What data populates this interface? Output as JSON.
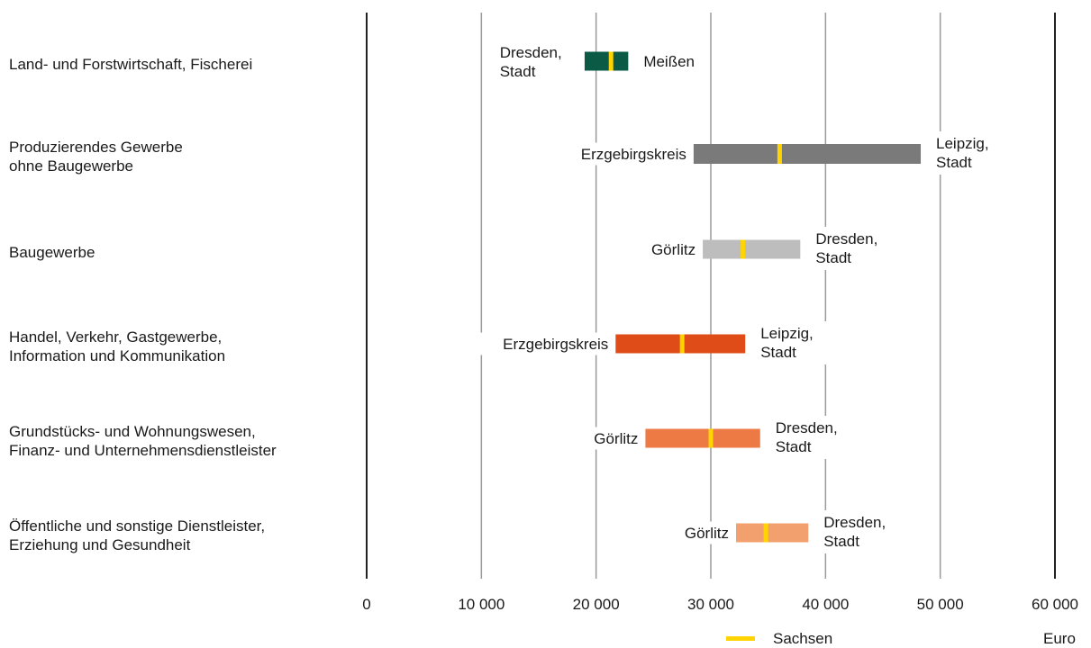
{
  "chart_data": {
    "type": "range-bar",
    "xlim": [
      0,
      60000
    ],
    "x_ticks": [
      {
        "value": 0,
        "label": "0"
      },
      {
        "value": 10000,
        "label": "10 000"
      },
      {
        "value": 20000,
        "label": "20 000"
      },
      {
        "value": 30000,
        "label": "30 000"
      },
      {
        "value": 40000,
        "label": "40 000"
      },
      {
        "value": 50000,
        "label": "50 000"
      },
      {
        "value": 60000,
        "label": "60 000"
      }
    ],
    "unit": "Euro",
    "legend": {
      "marker_label": "Sachsen",
      "marker_color": "#ffd400"
    },
    "categories": [
      {
        "label": "Land- und Forstwirtschaft, Fischerei",
        "min": 19000,
        "max": 22800,
        "sachsen": 21300,
        "min_label": "Dresden,\nStadt",
        "max_label": "Meißen",
        "color": "#0b5a45"
      },
      {
        "label": "Produzierendes Gewerbe\nohne Baugewerbe",
        "min": 28500,
        "max": 48300,
        "sachsen": 36000,
        "min_label": "Erzgebirgskreis",
        "max_label": "Leipzig,\nStadt",
        "color": "#7a7a7a"
      },
      {
        "label": "Baugewerbe",
        "min": 29300,
        "max": 37800,
        "sachsen": 32800,
        "min_label": "Görlitz",
        "max_label": "Dresden,\nStadt",
        "color": "#bdbdbd"
      },
      {
        "label": "Handel, Verkehr, Gastgewerbe,\nInformation und Kommunikation",
        "min": 21700,
        "max": 33000,
        "sachsen": 27500,
        "min_label": "Erzgebirgskreis",
        "max_label": "Leipzig,\nStadt",
        "color": "#e04c17"
      },
      {
        "label": "Grundstücks- und Wohnungswesen,\nFinanz- und Unternehmensdienstleister",
        "min": 24300,
        "max": 34300,
        "sachsen": 30000,
        "min_label": "Görlitz",
        "max_label": "Dresden,\nStadt",
        "color": "#ed7a45"
      },
      {
        "label": "Öffentliche und sonstige Dienstleister,\nErziehung und Gesundheit",
        "min": 32200,
        "max": 38500,
        "sachsen": 34800,
        "min_label": "Görlitz",
        "max_label": "Dresden,\nStadt",
        "color": "#f2a16e"
      }
    ]
  }
}
